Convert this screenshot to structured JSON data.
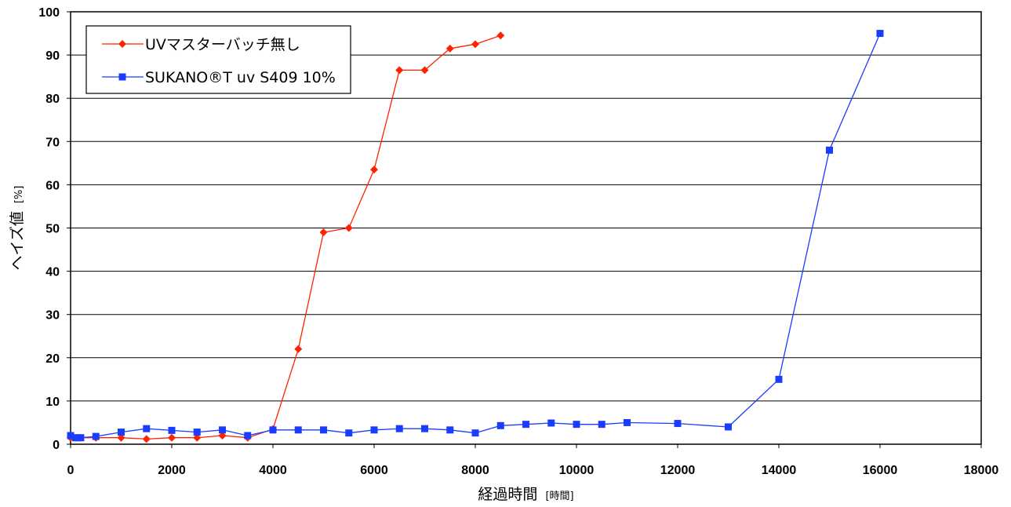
{
  "chart_data": {
    "type": "line",
    "xlabel": "経過時間",
    "xlabel_unit": "[時間]",
    "ylabel": "ヘイズ値",
    "ylabel_unit": "[%]",
    "xlim": [
      0,
      18000
    ],
    "ylim": [
      0,
      100
    ],
    "x_ticks": [
      0,
      2000,
      4000,
      6000,
      8000,
      10000,
      12000,
      14000,
      16000,
      18000
    ],
    "y_ticks": [
      0,
      10,
      20,
      30,
      40,
      50,
      60,
      70,
      80,
      90,
      100
    ],
    "grid": "horizontal",
    "legend_position": "top-left",
    "series": [
      {
        "name": "UVマスターバッチ無し",
        "color": "#ff2200",
        "marker": "diamond",
        "x": [
          0,
          100,
          200,
          500,
          1000,
          1500,
          2000,
          2500,
          3000,
          3500,
          4000,
          4500,
          5000,
          5500,
          6000,
          6500,
          7000,
          7500,
          8000,
          8500
        ],
        "y": [
          1.5,
          1.5,
          1.5,
          1.5,
          1.5,
          1.2,
          1.5,
          1.5,
          2.0,
          1.5,
          3.5,
          22,
          49,
          50,
          63.5,
          86.5,
          86.5,
          91.5,
          92.5,
          94.5
        ]
      },
      {
        "name": "SUKANO®T uv S409 10%",
        "color": "#1a3cff",
        "marker": "square",
        "x": [
          0,
          100,
          200,
          500,
          1000,
          1500,
          2000,
          2500,
          3000,
          3500,
          4000,
          4500,
          5000,
          5500,
          6000,
          6500,
          7000,
          7500,
          8000,
          8500,
          9000,
          9500,
          10000,
          10500,
          11000,
          12000,
          13000,
          14000,
          15000,
          16000
        ],
        "y": [
          2.0,
          1.5,
          1.5,
          1.8,
          2.8,
          3.6,
          3.2,
          2.8,
          3.3,
          2.0,
          3.3,
          3.3,
          3.3,
          2.6,
          3.3,
          3.6,
          3.6,
          3.3,
          2.6,
          4.3,
          4.6,
          4.9,
          4.6,
          4.6,
          5.0,
          4.8,
          4.0,
          15,
          68,
          95
        ]
      }
    ]
  }
}
